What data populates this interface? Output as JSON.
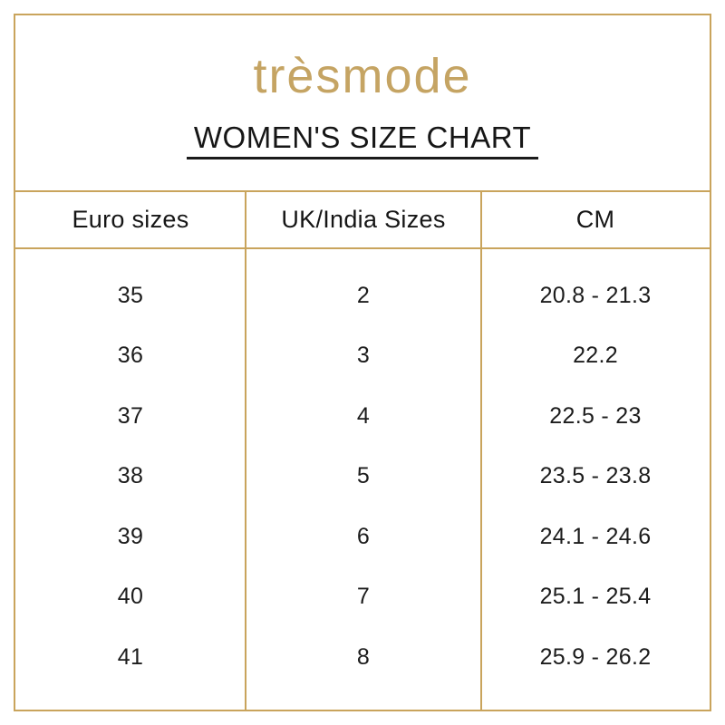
{
  "brand": {
    "logo_text": "trèsmode"
  },
  "title": "WOMEN'S SIZE CHART",
  "colors": {
    "gold_border": "#c9a45c",
    "logo_gold": "#c5a463",
    "text": "#1c1c1c",
    "background": "#ffffff"
  },
  "chart_data": {
    "type": "table",
    "title": "WOMEN'S SIZE CHART",
    "columns": [
      "Euro sizes",
      "UK/India Sizes",
      "CM"
    ],
    "rows": [
      [
        "35",
        "2",
        "20.8 - 21.3"
      ],
      [
        "36",
        "3",
        "22.2"
      ],
      [
        "37",
        "4",
        "22.5 - 23"
      ],
      [
        "38",
        "5",
        "23.5 - 23.8"
      ],
      [
        "39",
        "6",
        "24.1 - 24.6"
      ],
      [
        "40",
        "7",
        "25.1 - 25.4"
      ],
      [
        "41",
        "8",
        "25.9 - 26.2"
      ]
    ]
  }
}
